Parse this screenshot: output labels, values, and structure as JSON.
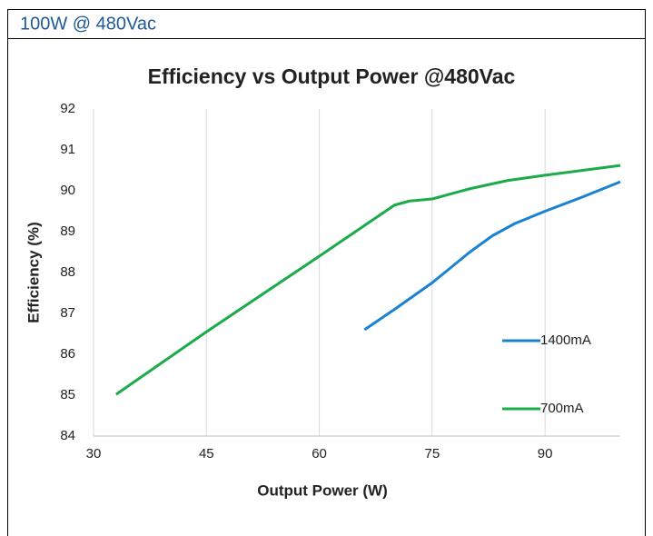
{
  "header": {
    "title": "100W @ 480Vac"
  },
  "chart_data": {
    "type": "line",
    "title": "Efficiency vs Output Power @480Vac",
    "xlabel": "Output Power (W)",
    "ylabel": "Efficiency (%)",
    "xlim": [
      30,
      100
    ],
    "xticks": [
      30,
      45,
      60,
      75,
      90
    ],
    "ylim": [
      84,
      92
    ],
    "yticks": [
      84,
      85,
      86,
      87,
      88,
      89,
      90,
      91,
      92
    ],
    "grid": "x",
    "legend": "right",
    "series": [
      {
        "name": "1400mA",
        "color": "#1a82d0",
        "x": [
          66,
          70,
          75,
          80,
          83,
          86,
          90,
          95,
          100
        ],
        "values": [
          86.6,
          87.1,
          87.75,
          88.5,
          88.9,
          89.2,
          89.5,
          89.85,
          90.22
        ]
      },
      {
        "name": "700mA",
        "color": "#1aab4b",
        "x": [
          33,
          45,
          60,
          68,
          70,
          72,
          75,
          80,
          85,
          90,
          95,
          100
        ],
        "values": [
          85.02,
          86.55,
          88.4,
          89.4,
          89.65,
          89.75,
          89.8,
          90.05,
          90.25,
          90.38,
          90.5,
          90.62
        ]
      }
    ]
  }
}
